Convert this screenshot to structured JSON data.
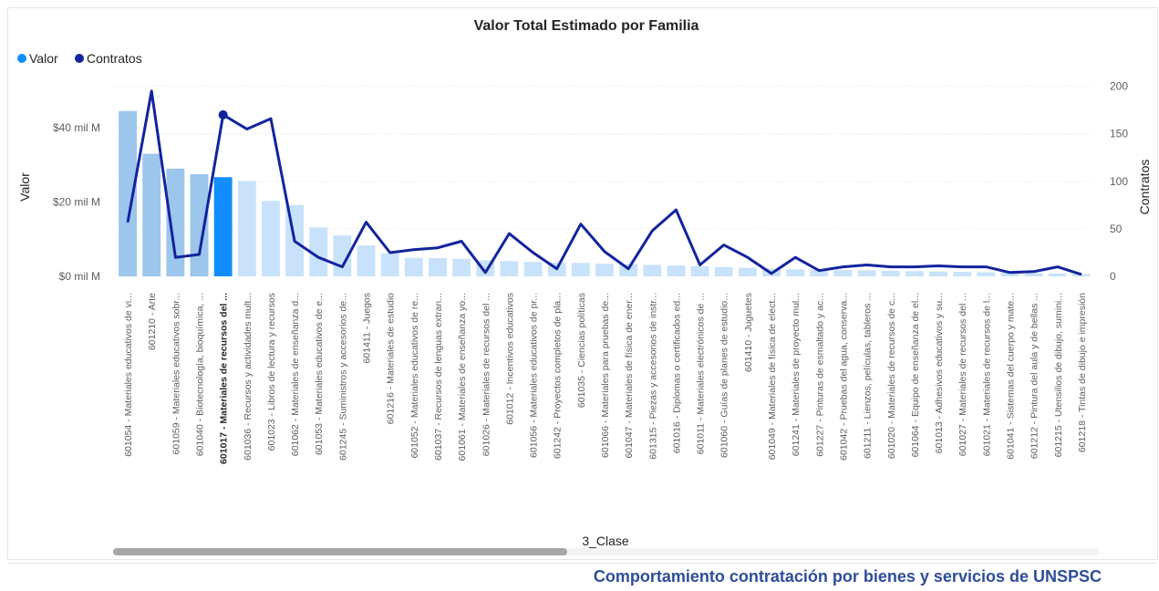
{
  "footer": {
    "text": "Comportamiento contratación por bienes y servicios de UNSPSC"
  },
  "colors": {
    "bar_default": "#c8e2fb",
    "bar_top": "#9cc6eb",
    "bar_selected": "#118dff",
    "line": "#12239e",
    "legend_valor": "#118dff",
    "legend_contratos": "#12239e"
  },
  "chart_data": {
    "type": "bar",
    "title": "Valor Total Estimado por Familia",
    "xlabel": "3_Clase",
    "ylabel": "Valor",
    "y2label": "Contratos",
    "ylim": [
      0,
      55
    ],
    "y2lim": [
      0,
      215
    ],
    "yticks": [
      "$0 mil M",
      "$20 mil M",
      "$40 mil M"
    ],
    "y2ticks": [
      "0",
      "50",
      "100",
      "150",
      "200"
    ],
    "grid": true,
    "legend_position": "top-left",
    "legend": [
      "Valor",
      "Contratos"
    ],
    "selected_index": 4,
    "categories": [
      "601054 - Materiales educativos de vi...",
      "601210 - Arte",
      "601059 - Materiales educativos sobr...",
      "601040 - Biotecnología, bioquímica, ...",
      "601017 - Materiales de recursos del ...",
      "601036 - Recursos y actividades mult...",
      "601023 - Libros de lectura y recursos",
      "601062 - Materiales de enseñanza d...",
      "601053 - Materiales educativos de e...",
      "601245 - Suministros y accesorios de...",
      "601411 - Juegos",
      "601216 - Materiales de estudio",
      "601052 - Materiales educativos de re...",
      "601037 - Recursos de lenguas extran...",
      "601061 - Materiales de enseñanza yo...",
      "601026 - Materiales de recursos del ...",
      "601012 - Incentivos educativos",
      "601056 - Materiales educativos de pr...",
      "601242 - Proyectos completos de pla...",
      "601035 - Ciencias políticas",
      "601066 - Materiales para pruebas de...",
      "601047 - Materiales de física de ener...",
      "601315 - Piezas y accesorios de instr...",
      "601016 - Diplomas o certificados ed...",
      "601011 - Materiales electrónicos de ...",
      "601060 - Guías de planes de estudio...",
      "601410 - Juguetes",
      "601049 - Materiales de física de elect...",
      "601241 - Materiales de proyecto mul...",
      "601227 - Pinturas de esmaltado y ac...",
      "601042 - Pruebas del agua, conserva...",
      "601211 - Lienzos, películas, tableros ...",
      "601020 - Materiales de recursos de c...",
      "601064 - Equipo de enseñanza de el...",
      "601013 - Adhesivos educativos y su...",
      "601027 - Materiales de recursos del ...",
      "601021 - Materiales de recursos de l...",
      "601041 - Sistemas del cuerpo y mate...",
      "601212 - Pintura del aula y de bellas ...",
      "601215 - Utensilios de dibujo, sumini...",
      "601218 - Tintas de dibujo e impresión"
    ],
    "series": [
      {
        "name": "Valor",
        "type": "bar",
        "axis": "left",
        "unit": "mil M",
        "values": [
          44.5,
          33.0,
          29.0,
          27.5,
          26.7,
          25.7,
          20.3,
          19.2,
          13.2,
          11.0,
          8.3,
          6.2,
          5.0,
          4.9,
          4.7,
          4.3,
          4.1,
          3.9,
          3.7,
          3.6,
          3.4,
          3.3,
          3.1,
          2.9,
          2.7,
          2.5,
          2.3,
          2.1,
          1.9,
          1.8,
          1.7,
          1.6,
          1.5,
          1.4,
          1.3,
          1.2,
          1.1,
          1.0,
          0.9,
          0.8,
          0.6
        ]
      },
      {
        "name": "Contratos",
        "type": "line",
        "axis": "right",
        "values": [
          57,
          195,
          20,
          23,
          170,
          155,
          166,
          37,
          20,
          10,
          57,
          25,
          28,
          30,
          37,
          4,
          45,
          25,
          8,
          55,
          26,
          8,
          48,
          70,
          12,
          33,
          20,
          3,
          20,
          6,
          10,
          12,
          10,
          10,
          11,
          10,
          10,
          4,
          5,
          10,
          2
        ]
      }
    ]
  }
}
